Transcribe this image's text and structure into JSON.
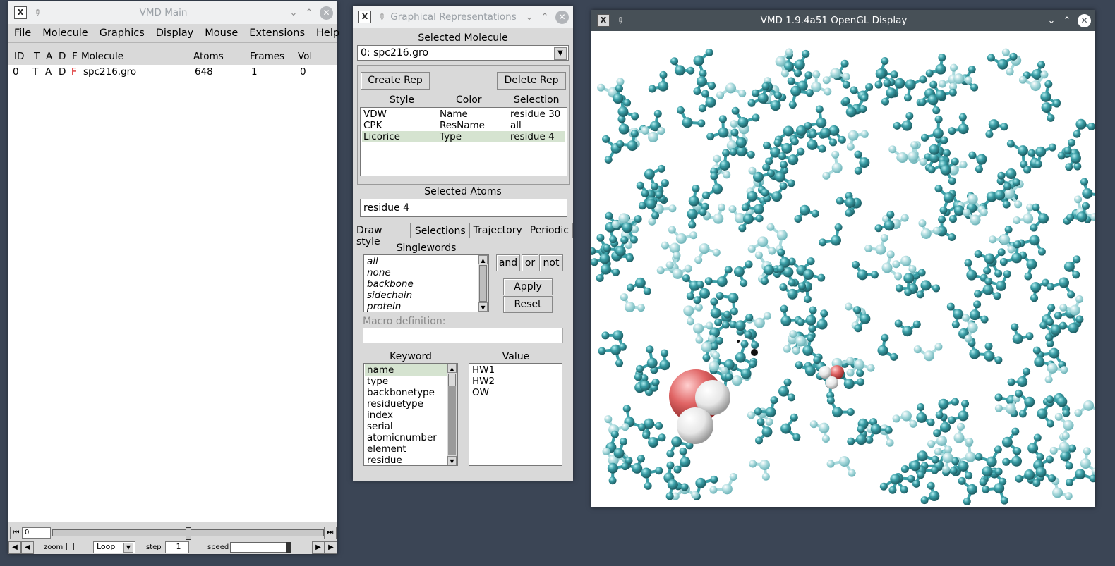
{
  "main_window": {
    "title": "VMD Main",
    "menu": [
      "File",
      "Molecule",
      "Graphics",
      "Display",
      "Mouse",
      "Extensions",
      "Help"
    ],
    "columns": {
      "id": "ID",
      "t": "T",
      "a": "A",
      "d": "D",
      "f": "F",
      "molecule": "Molecule",
      "atoms": "Atoms",
      "frames": "Frames",
      "vol": "Vol"
    },
    "molecules": [
      {
        "id": "0",
        "t": "T",
        "a": "A",
        "d": "D",
        "f": "F",
        "name": "spc216.gro",
        "atoms": "648",
        "frames": "1",
        "vol": "0"
      }
    ],
    "animation": {
      "frame_value": "0",
      "zoom_label": "zoom",
      "loop_value": "Loop",
      "step_label": "step",
      "step_value": "1",
      "speed_label": "speed"
    }
  },
  "reps_window": {
    "title": "Graphical Representations",
    "selected_molecule_label": "Selected Molecule",
    "selected_molecule": "0: spc216.gro",
    "create_rep": "Create Rep",
    "delete_rep": "Delete Rep",
    "headers": {
      "style": "Style",
      "color": "Color",
      "selection": "Selection"
    },
    "reps": [
      {
        "style": "VDW",
        "color": "Name",
        "selection": "residue 30"
      },
      {
        "style": "CPK",
        "color": "ResName",
        "selection": "all"
      },
      {
        "style": "Licorice",
        "color": "Type",
        "selection": "residue 4"
      }
    ],
    "selected_atoms_label": "Selected Atoms",
    "selected_atoms": "residue 4",
    "tabs": [
      "Draw style",
      "Selections",
      "Trajectory",
      "Periodic"
    ],
    "singlewords_label": "Singlewords",
    "singlewords": [
      "all",
      "none",
      "backbone",
      "sidechain",
      "protein"
    ],
    "and": "and",
    "or": "or",
    "not": "not",
    "apply": "Apply",
    "reset": "Reset",
    "macro_label": "Macro definition:",
    "keyword_label": "Keyword",
    "value_label": "Value",
    "keywords": [
      "name",
      "type",
      "backbonetype",
      "residuetype",
      "index",
      "serial",
      "atomicnumber",
      "element",
      "residue"
    ],
    "values": [
      "HW1",
      "HW2",
      "OW"
    ]
  },
  "gl_window": {
    "title": "VMD 1.9.4a51 OpenGL Display"
  },
  "colors": {
    "atom": "#3a9ea6",
    "atom_light": "#9cd3d6",
    "oxygen": "#e05050",
    "selection_bg": "#d5e3d0"
  }
}
